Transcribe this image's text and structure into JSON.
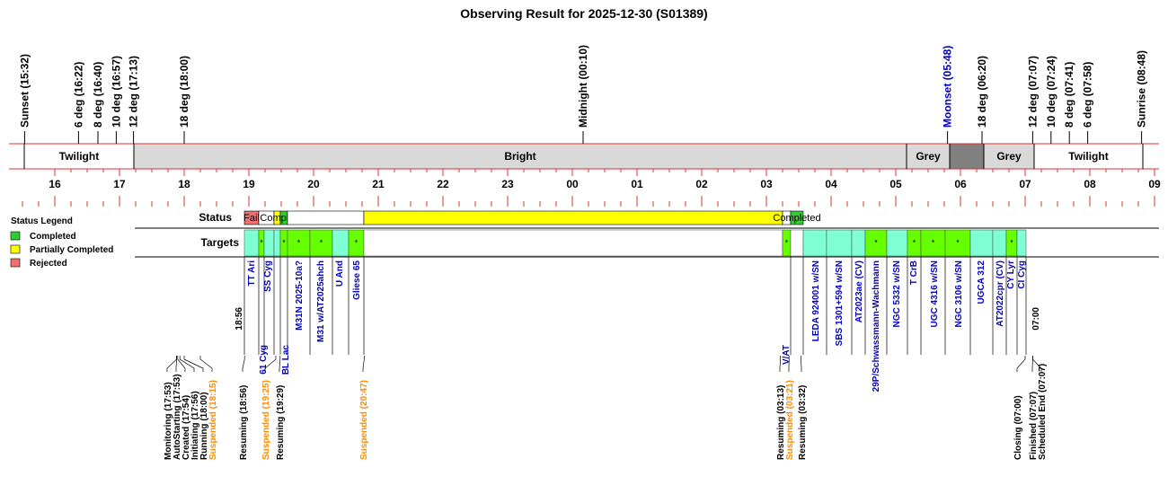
{
  "title": "Observing Result for 2025-12-30 (S01389)",
  "markers": [
    {
      "label": "Sunset (15:32)",
      "color": "#000000"
    },
    {
      "label": "6 deg (16:22)",
      "color": "#000000"
    },
    {
      "label": "8 deg (16:40)",
      "color": "#000000"
    },
    {
      "label": "10 deg (16:57)",
      "color": "#000000"
    },
    {
      "label": "12 deg (17:13)",
      "color": "#000000"
    },
    {
      "label": "18 deg (18:00)",
      "color": "#000000"
    },
    {
      "label": "Midnight (00:10)",
      "color": "#000000"
    },
    {
      "label": "Moonset (05:48)",
      "color": "#0000cc"
    },
    {
      "label": "18 deg (06:20)",
      "color": "#000000"
    },
    {
      "label": "12 deg (07:07)",
      "color": "#000000"
    },
    {
      "label": "10 deg (07:24)",
      "color": "#000000"
    },
    {
      "label": "8 deg (07:41)",
      "color": "#000000"
    },
    {
      "label": "6 deg (07:58)",
      "color": "#000000"
    },
    {
      "label": "Sunrise (08:48)",
      "color": "#000000"
    }
  ],
  "segments": [
    {
      "label": "Twilight",
      "color": "#ffffff"
    },
    {
      "label": "Bright",
      "color": "#d9d9d9"
    },
    {
      "label": "Grey",
      "color": "#d9d9d9"
    },
    {
      "label": null,
      "color": "#808080"
    },
    {
      "label": "Grey",
      "color": "#d9d9d9"
    },
    {
      "label": "Twilight",
      "color": "#ffffff"
    }
  ],
  "hours": [
    "16",
    "17",
    "18",
    "19",
    "20",
    "21",
    "22",
    "23",
    "00",
    "01",
    "02",
    "03",
    "04",
    "05",
    "06",
    "07",
    "08",
    "09"
  ],
  "legend": {
    "title": "Status Legend",
    "items": [
      {
        "label": "Completed",
        "color": "#33cc33"
      },
      {
        "label": "Partially Completed",
        "color": "#ffff00"
      },
      {
        "label": "Rejected",
        "color": "#f07070"
      }
    ]
  },
  "status": {
    "label": "Status",
    "cells": [
      {
        "text": "Fail",
        "color": "#f07070"
      },
      {
        "text": null,
        "color": "#ffffff"
      },
      {
        "text": null,
        "color": "#ffff00"
      },
      {
        "text": "Completed",
        "color": "#33cc33"
      },
      {
        "text": null,
        "color": "#ffffff"
      },
      {
        "text": null,
        "color": "#ffff00"
      },
      {
        "text": null,
        "color": "#ffffff"
      },
      {
        "text": "Completed",
        "color": "#33cc33"
      }
    ]
  },
  "targets": {
    "label": "Targets",
    "cells": [
      {
        "mark": null,
        "color": "#7fffd4"
      },
      {
        "mark": "*",
        "color": "#66ff00"
      },
      {
        "mark": null,
        "color": "#7fffd4"
      },
      {
        "mark": null,
        "color": "#7fffd4"
      },
      {
        "mark": "*",
        "color": "#66ff00"
      },
      {
        "mark": "*",
        "color": "#66ff00"
      },
      {
        "mark": "*",
        "color": "#66ff00"
      },
      {
        "mark": null,
        "color": "#7fffd4"
      },
      {
        "mark": "*",
        "color": "#66ff00"
      },
      {
        "mark": null,
        "color": "#ffffff"
      },
      {
        "mark": "*",
        "color": "#66ff00"
      },
      {
        "mark": null,
        "color": "#ffffff"
      },
      {
        "mark": null,
        "color": "#7fffd4"
      },
      {
        "mark": null,
        "color": "#7fffd4"
      },
      {
        "mark": null,
        "color": "#7fffd4"
      },
      {
        "mark": "*",
        "color": "#66ff00"
      },
      {
        "mark": null,
        "color": "#7fffd4"
      },
      {
        "mark": "*",
        "color": "#66ff00"
      },
      {
        "mark": "*",
        "color": "#66ff00"
      },
      {
        "mark": "*",
        "color": "#66ff00"
      },
      {
        "mark": null,
        "color": "#7fffd4"
      },
      {
        "mark": null,
        "color": "#7fffd4"
      },
      {
        "mark": "*",
        "color": "#66ff00"
      },
      {
        "mark": null,
        "color": "#7fffd4"
      }
    ],
    "names": [
      {
        "text": "TT Ari",
        "color": "#0000cc"
      },
      {
        "text": "SS Cyg",
        "color": "#0000cc"
      },
      {
        "text": "M31N 2025-10a?",
        "color": "#0000cc"
      },
      {
        "text": "M31 w/AT2025ahch",
        "color": "#0000cc"
      },
      {
        "text": "U And",
        "color": "#0000cc"
      },
      {
        "text": "Gliese 65",
        "color": "#0000cc"
      },
      {
        "text": "LEDA 924001 w/SN",
        "color": "#0000cc"
      },
      {
        "text": "SBS 1301+594 w/SN",
        "color": "#0000cc"
      },
      {
        "text": "AT2023ae (CV)",
        "color": "#0000cc"
      },
      {
        "text": "29P/Schwassmann-Wachmann",
        "color": "#0000cc"
      },
      {
        "text": "NGC 5332 w/SN",
        "color": "#0000cc"
      },
      {
        "text": "T CrB",
        "color": "#0000cc"
      },
      {
        "text": "UGC 4316 w/SN",
        "color": "#0000cc"
      },
      {
        "text": "NGC 3106 w/SN",
        "color": "#0000cc"
      },
      {
        "text": "UGCA 312",
        "color": "#0000cc"
      },
      {
        "text": "AT2022cpr (CV)",
        "color": "#0000cc"
      },
      {
        "text": "CY Lyr",
        "color": "#0000cc"
      },
      {
        "text": "CI Cyg",
        "color": "#0000cc"
      },
      {
        "text": "18:56",
        "color": "#000000"
      },
      {
        "text": "07:00",
        "color": "#000000"
      },
      {
        "text": "61 Cyg",
        "color": "#0000cc"
      },
      {
        "text": "BL Lac",
        "color": "#0000cc"
      },
      {
        "text": "V/AT",
        "color": "#0000cc"
      }
    ]
  },
  "events": [
    {
      "text": "Monitoring (17:53)",
      "color": "#000000"
    },
    {
      "text": "AutoStarting (17:53)",
      "color": "#000000"
    },
    {
      "text": "Created (17:54)",
      "color": "#000000"
    },
    {
      "text": "Initiating (17:56)",
      "color": "#000000"
    },
    {
      "text": "Running (18:00)",
      "color": "#000000"
    },
    {
      "text": "Suspended (18:15)",
      "color": "#ff8c00"
    },
    {
      "text": "Resuming (18:56)",
      "color": "#000000"
    },
    {
      "text": "Suspended (19:25)",
      "color": "#ff8c00"
    },
    {
      "text": "Resuming (19:29)",
      "color": "#000000"
    },
    {
      "text": "Suspended (20:47)",
      "color": "#ff8c00"
    },
    {
      "text": "Resuming (03:13)",
      "color": "#000000"
    },
    {
      "text": "Suspended (03:21)",
      "color": "#ff8c00"
    },
    {
      "text": "Resuming (03:32)",
      "color": "#000000"
    },
    {
      "text": "Closing (07:00)",
      "color": "#000000"
    },
    {
      "text": "Finished (07:07)",
      "color": "#000000"
    },
    {
      "text": "Scheduled End (07:07)",
      "color": "#000000"
    }
  ]
}
